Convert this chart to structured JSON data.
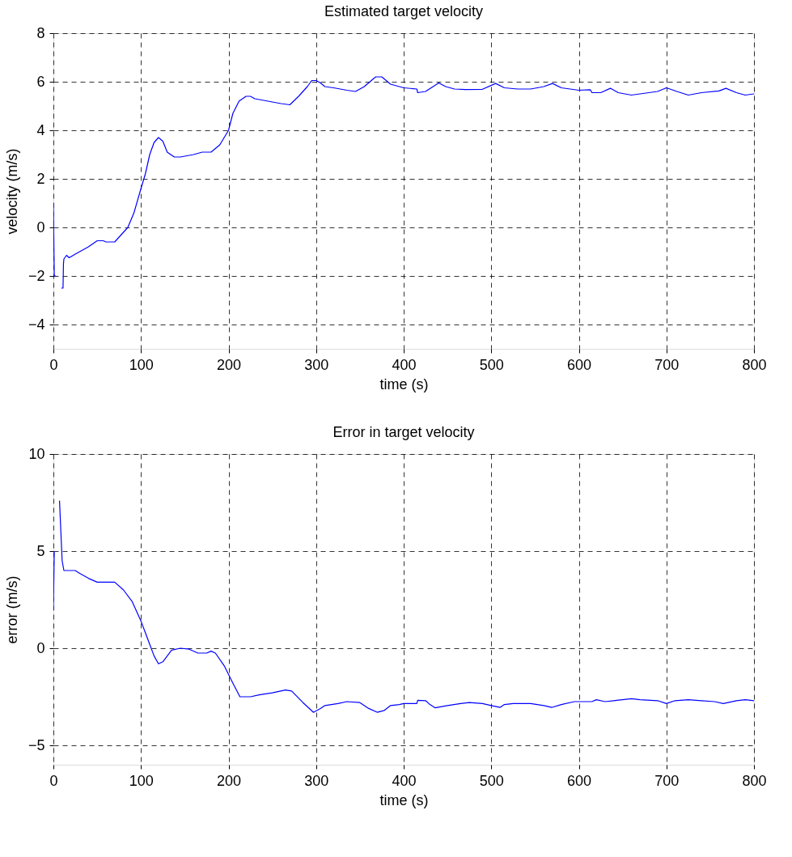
{
  "chart_data": [
    {
      "type": "line",
      "title": "Estimated target velocity",
      "xlabel": "time (s)",
      "ylabel": "velocity (m/s)",
      "xlim": [
        0,
        800
      ],
      "xticks": [
        0,
        100,
        200,
        300,
        400,
        500,
        600,
        700,
        800
      ],
      "ylim": [
        -5,
        8
      ],
      "yticks": [
        -4,
        -2,
        0,
        2,
        4,
        6,
        8
      ],
      "grid": true,
      "line_style": "solid",
      "marker": "none",
      "series": [
        {
          "color": "#0000ff",
          "x": [
            0,
            1,
            3,
            4,
            8,
            9,
            11,
            11.5,
            12,
            15,
            18,
            25,
            40,
            50,
            57,
            60,
            70,
            80,
            85,
            92,
            100,
            105,
            110,
            115,
            120,
            125,
            130,
            138,
            145,
            160,
            170,
            180,
            190,
            200,
            205,
            212,
            220,
            225,
            230,
            245,
            260,
            270,
            280,
            290,
            295,
            300,
            305,
            310,
            320,
            335,
            345,
            355,
            368,
            375,
            385,
            395,
            400,
            415,
            416,
            425,
            440,
            448,
            458,
            470,
            490,
            505,
            515,
            530,
            545,
            560,
            570,
            580,
            590,
            600,
            613,
            615,
            625,
            636,
            645,
            660,
            670,
            690,
            700,
            712,
            725,
            740,
            760,
            768,
            780,
            790,
            800
          ],
          "values": [
            1.0,
            -2.0,
            -2.0,
            null,
            null,
            -2.5,
            -2.5,
            -1.5,
            -1.3,
            -1.15,
            -1.25,
            -1.1,
            -0.8,
            -0.55,
            -0.55,
            -0.6,
            -0.6,
            -0.2,
            0.0,
            0.6,
            1.6,
            2.2,
            3.0,
            3.5,
            3.7,
            3.55,
            3.1,
            2.9,
            2.9,
            3.0,
            3.1,
            3.1,
            3.4,
            4.0,
            4.7,
            5.2,
            5.4,
            5.4,
            5.3,
            5.2,
            5.1,
            5.05,
            5.4,
            5.8,
            6.05,
            6.05,
            5.95,
            5.8,
            5.75,
            5.65,
            5.6,
            5.8,
            6.2,
            6.2,
            5.9,
            5.8,
            5.75,
            5.7,
            5.55,
            5.6,
            5.95,
            5.8,
            5.7,
            5.68,
            5.69,
            5.93,
            5.75,
            5.7,
            5.7,
            5.8,
            5.93,
            5.75,
            5.7,
            5.65,
            5.67,
            5.55,
            5.55,
            5.73,
            5.55,
            5.45,
            5.5,
            5.6,
            5.75,
            5.6,
            5.45,
            5.55,
            5.62,
            5.73,
            5.55,
            5.45,
            5.5
          ]
        }
      ]
    },
    {
      "type": "line",
      "title": "Error in target velocity",
      "xlabel": "time (s)",
      "ylabel": "error (m/s)",
      "xlim": [
        0,
        800
      ],
      "xticks": [
        0,
        100,
        200,
        300,
        400,
        500,
        600,
        700,
        800
      ],
      "ylim": [
        -6,
        10
      ],
      "yticks": [
        -5,
        0,
        5,
        10
      ],
      "grid": true,
      "line_style": "solid",
      "marker": "none",
      "series": [
        {
          "color": "#0000ff",
          "x": [
            0,
            1,
            2,
            5,
            7,
            9,
            10,
            12,
            25,
            30,
            40,
            50,
            70,
            80,
            90,
            100,
            105,
            110,
            115,
            120,
            125,
            130,
            135,
            145,
            155,
            165,
            175,
            180,
            185,
            195,
            205,
            213,
            225,
            235,
            250,
            265,
            272,
            285,
            297,
            305,
            310,
            325,
            335,
            350,
            360,
            370,
            378,
            385,
            395,
            400,
            415,
            416,
            425,
            430,
            436,
            450,
            465,
            475,
            490,
            500,
            510,
            515,
            525,
            545,
            560,
            569,
            580,
            595,
            615,
            620,
            630,
            640,
            650,
            660,
            670,
            690,
            700,
            710,
            725,
            740,
            755,
            765,
            780,
            790,
            800
          ],
          "values": [
            2.0,
            5.0,
            null,
            null,
            7.6,
            5.5,
            4.5,
            4.0,
            4.0,
            3.85,
            3.6,
            3.4,
            3.4,
            3.0,
            2.4,
            1.4,
            0.8,
            0.2,
            -0.4,
            -0.8,
            -0.7,
            -0.4,
            -0.1,
            0.0,
            -0.05,
            -0.25,
            -0.25,
            -0.15,
            -0.25,
            -0.9,
            -1.8,
            -2.5,
            -2.5,
            -2.4,
            -2.3,
            -2.15,
            -2.2,
            -2.8,
            -3.3,
            -3.1,
            -2.95,
            -2.85,
            -2.75,
            -2.8,
            -3.1,
            -3.3,
            -3.2,
            -2.95,
            -2.9,
            -2.85,
            -2.85,
            -2.68,
            -2.7,
            -2.9,
            -3.07,
            -2.95,
            -2.85,
            -2.8,
            -2.85,
            -2.95,
            -3.05,
            -2.9,
            -2.85,
            -2.85,
            -2.95,
            -3.05,
            -2.9,
            -2.75,
            -2.75,
            -2.65,
            -2.75,
            -2.7,
            -2.65,
            -2.6,
            -2.65,
            -2.7,
            -2.85,
            -2.7,
            -2.65,
            -2.7,
            -2.75,
            -2.85,
            -2.7,
            -2.65,
            -2.7
          ]
        }
      ]
    }
  ]
}
